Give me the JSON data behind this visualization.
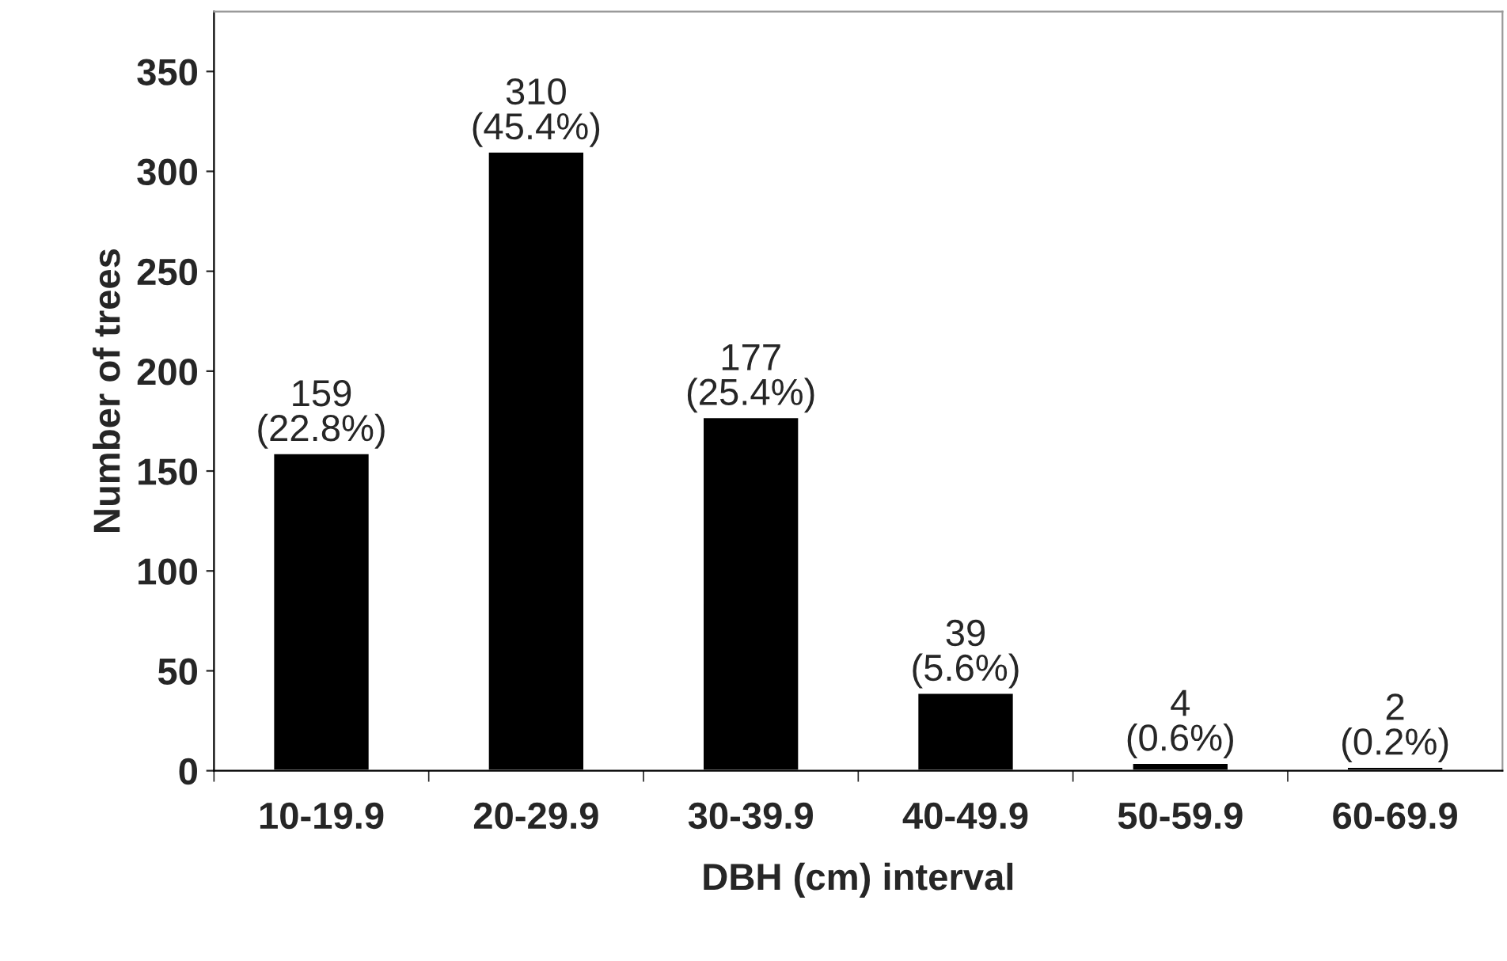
{
  "chart_data": {
    "type": "bar",
    "xlabel": "DBH (cm) interval",
    "ylabel": "Number of trees",
    "categories": [
      "10-19.9",
      "20-29.9",
      "30-39.9",
      "40-49.9",
      "50-59.9",
      "60-69.9"
    ],
    "values": [
      159,
      310,
      177,
      39,
      4,
      2
    ],
    "color": "#000000",
    "value_labels": [
      "159\n(22.8%)",
      "310\n(45.4%)",
      "177\n(25.4%)",
      "39\n(5.6%)",
      "4\n(0.6%)",
      "2\n(0.2%)"
    ],
    "ylim": [
      0,
      380
    ],
    "yticks": [
      0,
      50,
      100,
      150,
      200,
      250,
      300,
      350
    ],
    "grid": false
  }
}
